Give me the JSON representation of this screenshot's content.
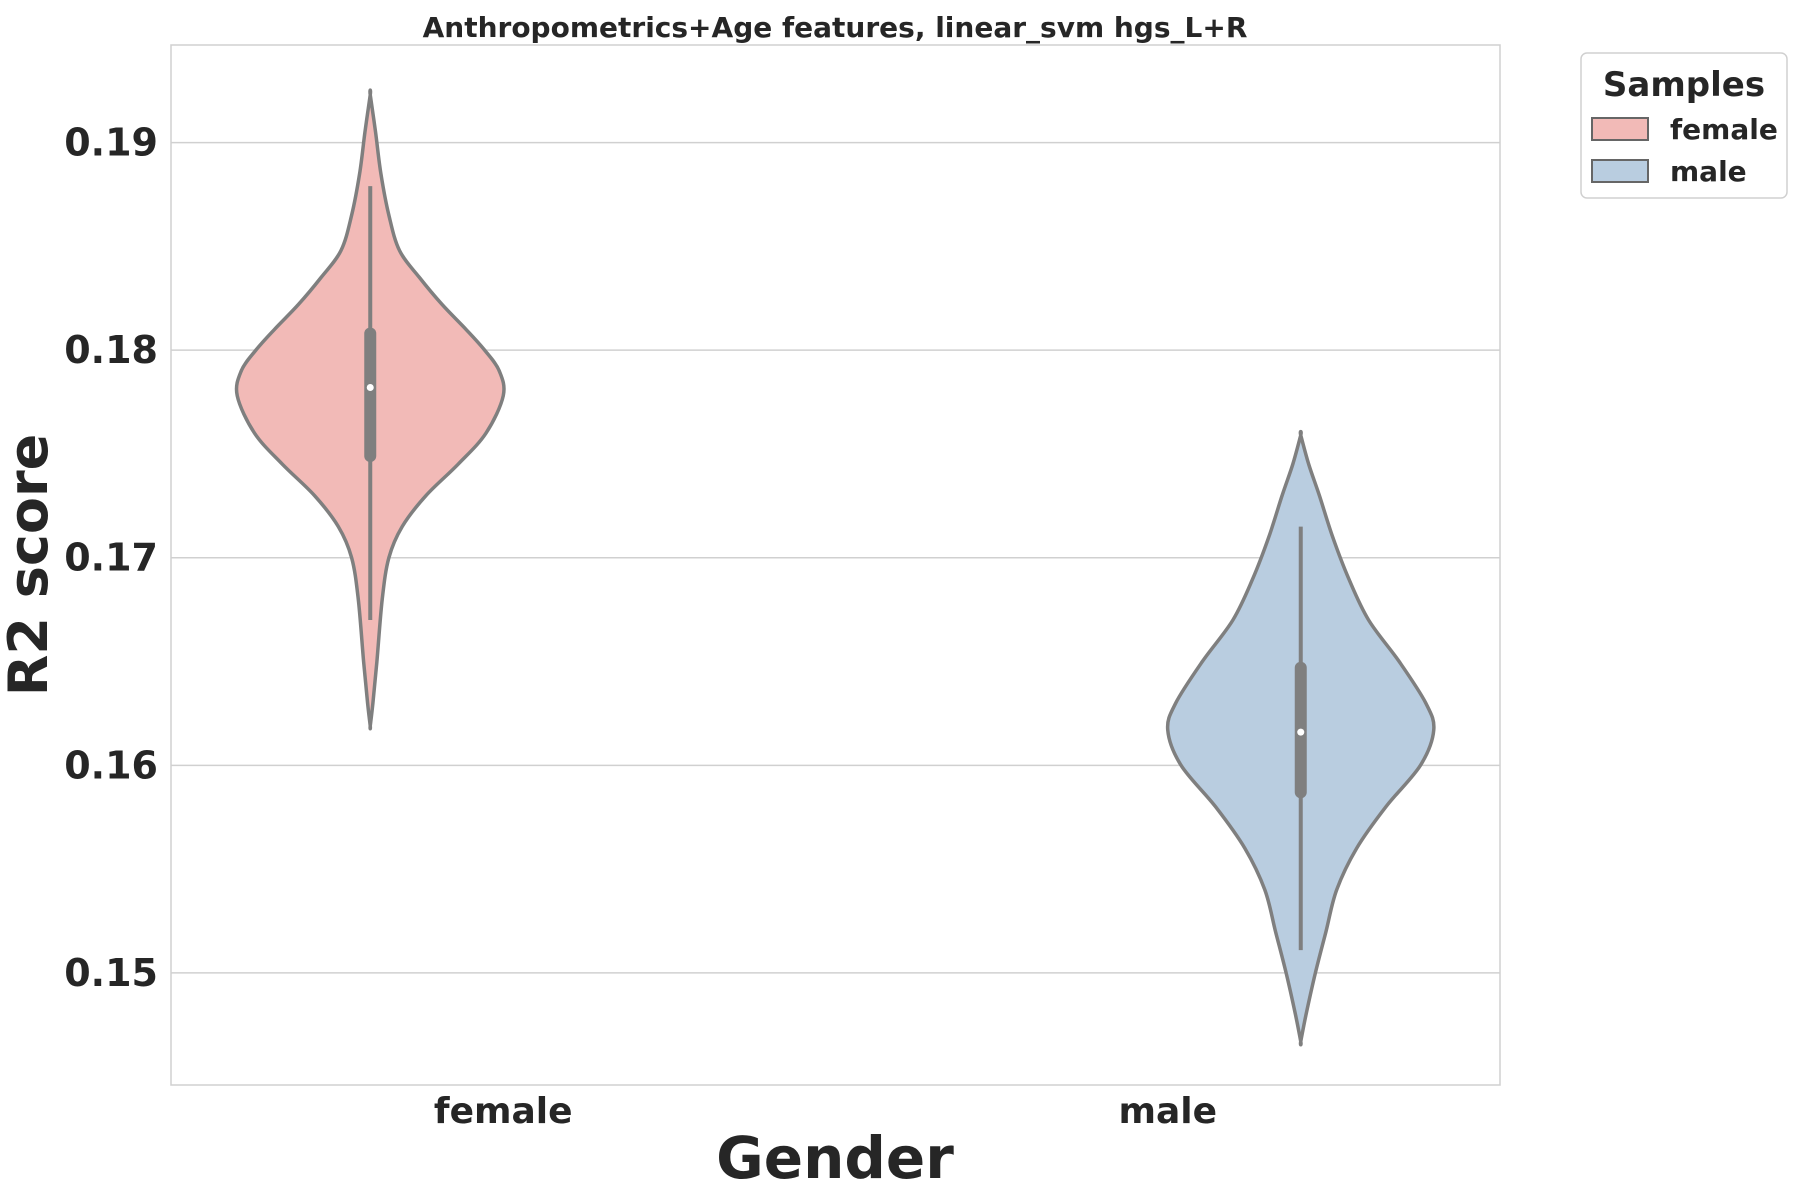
{
  "chart_data": {
    "type": "violin",
    "title": "Anthropometrics+Age features, linear_svm hgs_L+R",
    "xlabel": "Gender",
    "ylabel": "R2 score",
    "categories": [
      "female",
      "male"
    ],
    "ylim": [
      0.1446,
      0.1947
    ],
    "yticks": [
      0.15,
      0.16,
      0.17,
      0.18,
      0.19
    ],
    "ytick_labels": [
      "0.15",
      "0.16",
      "0.17",
      "0.18",
      "0.19"
    ],
    "grid": true,
    "legend": {
      "title": "Samples",
      "position": "outside-top-right",
      "entries": [
        "female",
        "male"
      ]
    },
    "series": [
      {
        "name": "female",
        "color": "#f2bab7",
        "min": 0.167,
        "q1": 0.1749,
        "median": 0.1782,
        "q3": 0.1808,
        "max": 0.1879,
        "extent": [
          0.1619,
          0.1923
        ],
        "density": [
          [
            0.1619,
            0.0
          ],
          [
            0.163,
            0.02
          ],
          [
            0.165,
            0.05
          ],
          [
            0.168,
            0.09
          ],
          [
            0.17,
            0.14
          ],
          [
            0.1715,
            0.24
          ],
          [
            0.173,
            0.42
          ],
          [
            0.1745,
            0.66
          ],
          [
            0.176,
            0.87
          ],
          [
            0.1778,
            1.0
          ],
          [
            0.179,
            0.97
          ],
          [
            0.18,
            0.86
          ],
          [
            0.181,
            0.72
          ],
          [
            0.1822,
            0.54
          ],
          [
            0.1835,
            0.37
          ],
          [
            0.1848,
            0.22
          ],
          [
            0.1865,
            0.14
          ],
          [
            0.1885,
            0.08
          ],
          [
            0.1905,
            0.04
          ],
          [
            0.1923,
            0.0
          ]
        ]
      },
      {
        "name": "male",
        "color": "#b9cde0",
        "min": 0.1511,
        "q1": 0.1587,
        "median": 0.1616,
        "q3": 0.1647,
        "max": 0.1715,
        "extent": [
          0.1467,
          0.1759
        ],
        "density": [
          [
            0.1467,
            0.0
          ],
          [
            0.148,
            0.04
          ],
          [
            0.15,
            0.11
          ],
          [
            0.152,
            0.19
          ],
          [
            0.154,
            0.27
          ],
          [
            0.156,
            0.42
          ],
          [
            0.158,
            0.64
          ],
          [
            0.16,
            0.9
          ],
          [
            0.1617,
            1.0
          ],
          [
            0.163,
            0.94
          ],
          [
            0.165,
            0.74
          ],
          [
            0.167,
            0.51
          ],
          [
            0.169,
            0.36
          ],
          [
            0.171,
            0.24
          ],
          [
            0.173,
            0.14
          ],
          [
            0.1745,
            0.06
          ],
          [
            0.1759,
            0.0
          ]
        ]
      }
    ]
  }
}
